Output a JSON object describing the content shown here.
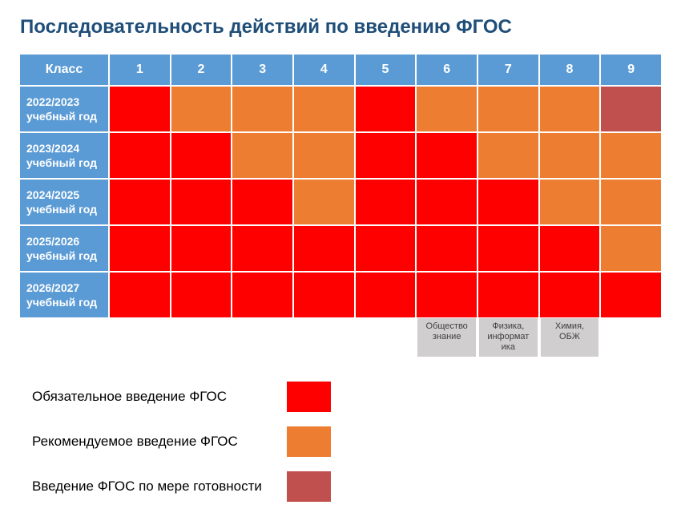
{
  "title": "Последовательность действий по введению ФГОС",
  "colors": {
    "header_bg": "#5b9bd5",
    "header_text": "#ffffff",
    "mandatory": "#ff0000",
    "recommended": "#ed7d31",
    "readiness": "#c0504d",
    "sublabel_bg": "#d0cece",
    "sublabel_text": "#404040",
    "title_color": "#1f4e79"
  },
  "table": {
    "header_first": "Класс",
    "columns": [
      "1",
      "2",
      "3",
      "4",
      "5",
      "6",
      "7",
      "8",
      "9"
    ],
    "rows": [
      {
        "label": "2022/2023 учебный год",
        "cells": [
          "mandatory",
          "recommended",
          "recommended",
          "recommended",
          "mandatory",
          "recommended",
          "recommended",
          "recommended",
          "readiness"
        ]
      },
      {
        "label": "2023/2024 учебный год",
        "cells": [
          "mandatory",
          "mandatory",
          "recommended",
          "recommended",
          "mandatory",
          "mandatory",
          "recommended",
          "recommended",
          "recommended"
        ]
      },
      {
        "label": "2024/2025 учебный год",
        "cells": [
          "mandatory",
          "mandatory",
          "mandatory",
          "recommended",
          "mandatory",
          "mandatory",
          "mandatory",
          "recommended",
          "recommended"
        ]
      },
      {
        "label": "2025/2026 учебный год",
        "cells": [
          "mandatory",
          "mandatory",
          "mandatory",
          "mandatory",
          "mandatory",
          "mandatory",
          "mandatory",
          "mandatory",
          "recommended"
        ]
      },
      {
        "label": "2026/2027 учебный год",
        "cells": [
          "mandatory",
          "mandatory",
          "mandatory",
          "mandatory",
          "mandatory",
          "mandatory",
          "mandatory",
          "mandatory",
          "mandatory"
        ]
      }
    ],
    "sublabels": [
      "",
      "",
      "",
      "",
      "",
      "Общество\nзнание",
      "Физика,\nинформат\nика",
      "Химия,\nОБЖ",
      ""
    ]
  },
  "legend": [
    {
      "label": "Обязательное введение ФГОС",
      "color_key": "mandatory"
    },
    {
      "label": "Рекомендуемое введение ФГОС",
      "color_key": "recommended"
    },
    {
      "label": "Введение ФГОС по мере готовности",
      "color_key": "readiness"
    }
  ]
}
